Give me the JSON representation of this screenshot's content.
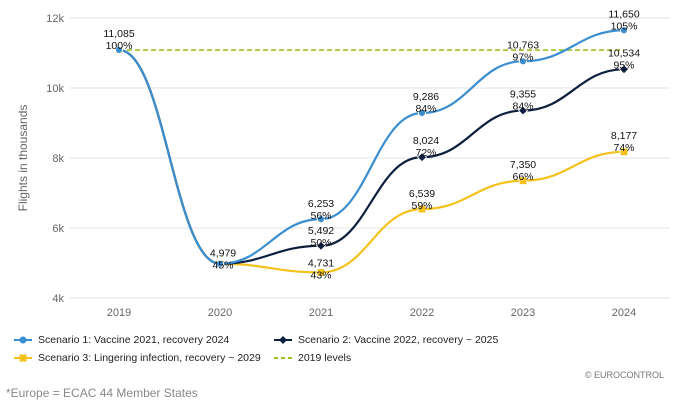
{
  "chart_data": {
    "type": "line",
    "ylabel": "Flights in thousands",
    "xlabel": "",
    "categories": [
      "2019",
      "2020",
      "2021",
      "2022",
      "2023",
      "2024"
    ],
    "ylim": [
      4000,
      12000
    ],
    "yticks": [
      4000,
      6000,
      8000,
      10000,
      12000
    ],
    "ytick_labels": [
      "4k",
      "6k",
      "8k",
      "10k",
      "12k"
    ],
    "grid": true,
    "legend_position": "bottom",
    "series": [
      {
        "name": "Scenario 1: Vaccine 2021, recovery 2024",
        "color": "#3b8fd0",
        "marker": "circle",
        "values": [
          11085,
          4979,
          6253,
          9286,
          10763,
          11650
        ],
        "labels": [
          "",
          "",
          "6,253",
          "9,286",
          "10,763",
          "11,650"
        ],
        "pct": [
          "",
          "",
          "56%",
          "84%",
          "97%",
          "105%"
        ]
      },
      {
        "name": "Scenario 2: Vaccine 2022, recovery ~ 2025",
        "color": "#0d1f3f",
        "marker": "diamond",
        "values": [
          11085,
          4979,
          5492,
          8024,
          9355,
          10534
        ],
        "labels": [
          "",
          "",
          "5,492",
          "8,024",
          "9,355",
          "10,534"
        ],
        "pct": [
          "",
          "",
          "50%",
          "72%",
          "84%",
          "95%"
        ]
      },
      {
        "name": "Scenario 3: Lingering infection, recovery ~ 2029",
        "color": "#f5c21b",
        "marker": "square",
        "values": [
          11085,
          4979,
          4731,
          6539,
          7350,
          8177
        ],
        "labels": [
          "11,085",
          "4,979",
          "4,731",
          "6,539",
          "7,350",
          "8,177"
        ],
        "pct": [
          "100%",
          "45%",
          "43%",
          "59%",
          "66%",
          "74%"
        ]
      }
    ],
    "reference": {
      "name": "2019 levels",
      "value": 11085,
      "color": "#9cc326",
      "style": "dashed"
    }
  },
  "footnote": "*Europe = ECAC 44 Member States",
  "credit": "© EUROCONTROL"
}
